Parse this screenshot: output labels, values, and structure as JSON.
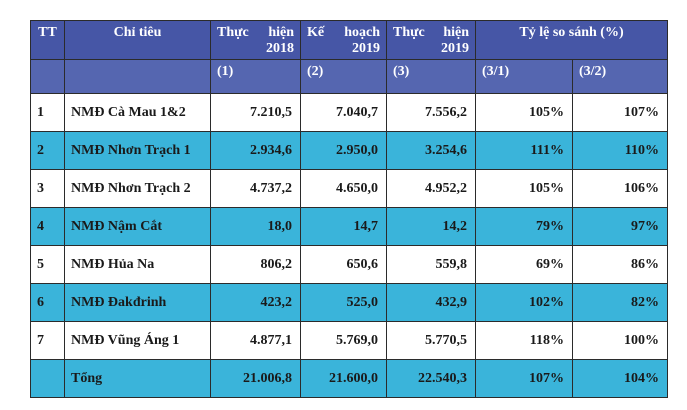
{
  "table": {
    "header": {
      "tt": "TT",
      "name": "Chỉ tiêu",
      "c1": [
        "Thực hiện",
        "2018"
      ],
      "c2": [
        "Kế hoạch",
        "2019"
      ],
      "c3": [
        "Thực hiện",
        "2019"
      ],
      "ratio": "Tỷ lệ so sánh (%)"
    },
    "subheader": [
      "(1)",
      "(2)",
      "(3)",
      "(3/1)",
      "(3/2)"
    ],
    "rows": [
      [
        "1",
        "NMĐ Cà Mau 1&2",
        "7.210,5",
        "7.040,7",
        "7.556,2",
        "105%",
        "107%"
      ],
      [
        "2",
        "NMĐ Nhơn Trạch 1",
        "2.934,6",
        "2.950,0",
        "3.254,6",
        "111%",
        "110%"
      ],
      [
        "3",
        "NMĐ Nhơn Trạch 2",
        "4.737,2",
        "4.650,0",
        "4.952,2",
        "105%",
        "106%"
      ],
      [
        "4",
        "NMĐ Nậm Cắt",
        "18,0",
        "14,7",
        "14,2",
        "79%",
        "97%"
      ],
      [
        "5",
        "NMĐ Hủa Na",
        "806,2",
        "650,6",
        "559,8",
        "69%",
        "86%"
      ],
      [
        "6",
        "NMĐ Đakđrinh",
        "423,2",
        "525,0",
        "432,9",
        "102%",
        "82%"
      ],
      [
        "7",
        "NMĐ Vũng Áng 1",
        "4.877,1",
        "5.769,0",
        "5.770,5",
        "118%",
        "100%"
      ]
    ],
    "total": [
      "Tổng",
      "21.006,8",
      "21.600,0",
      "22.540,3",
      "107%",
      "104%"
    ]
  }
}
